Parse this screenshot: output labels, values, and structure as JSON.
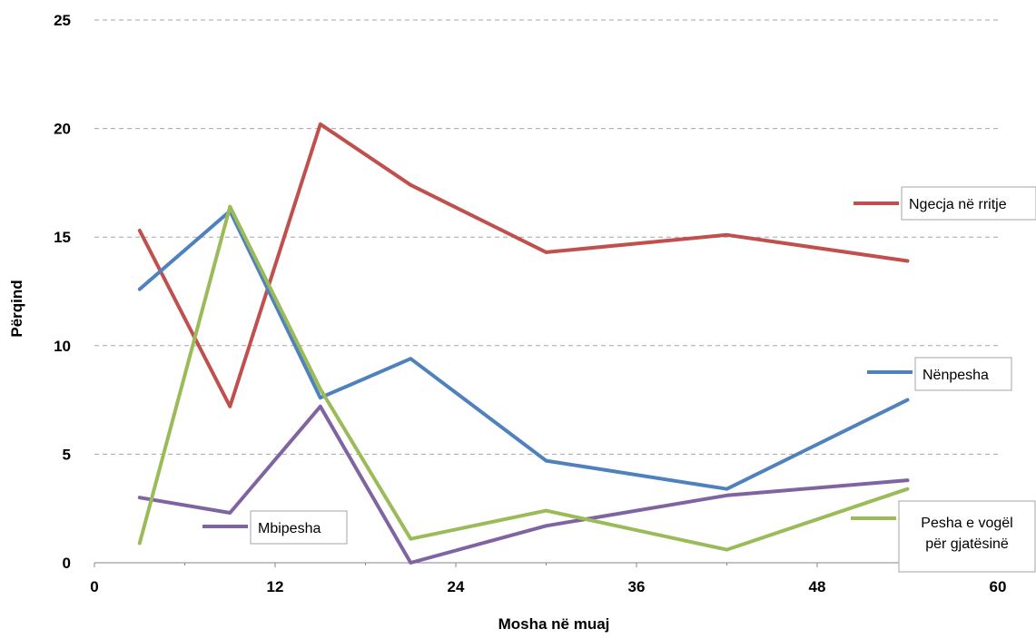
{
  "chart_data": {
    "type": "line",
    "xlabel": "Mosha në muaj",
    "ylabel": "Përqind",
    "xlim": [
      0,
      60
    ],
    "ylim": [
      0,
      25
    ],
    "xticks": [
      "0",
      "12",
      "24",
      "36",
      "48",
      "60"
    ],
    "yticks": [
      "0",
      "5",
      "10",
      "15",
      "20",
      "25"
    ],
    "grid": "horizontal-dashed",
    "x": [
      3,
      9,
      15,
      21,
      30,
      42,
      54
    ],
    "series": [
      {
        "name": "Ngecja në rritje",
        "color": "#C0504D",
        "values": [
          15.3,
          7.2,
          20.2,
          17.4,
          14.3,
          15.1,
          13.9
        ]
      },
      {
        "name": "Nënpesha",
        "color": "#4F81BD",
        "values": [
          12.6,
          16.2,
          7.6,
          9.4,
          4.7,
          3.4,
          7.5
        ]
      },
      {
        "name": "Mbipesha",
        "color": "#8064A2",
        "values": [
          3.0,
          2.3,
          7.2,
          0.0,
          1.7,
          3.1,
          3.8
        ]
      },
      {
        "name": "Pesha e vogël për gjatësinë",
        "name_lines": [
          "Pesha e vogël",
          "për gjatësinë"
        ],
        "color": "#9BBB59",
        "values": [
          0.9,
          16.4,
          8.0,
          1.1,
          2.4,
          0.6,
          3.4
        ]
      }
    ]
  }
}
